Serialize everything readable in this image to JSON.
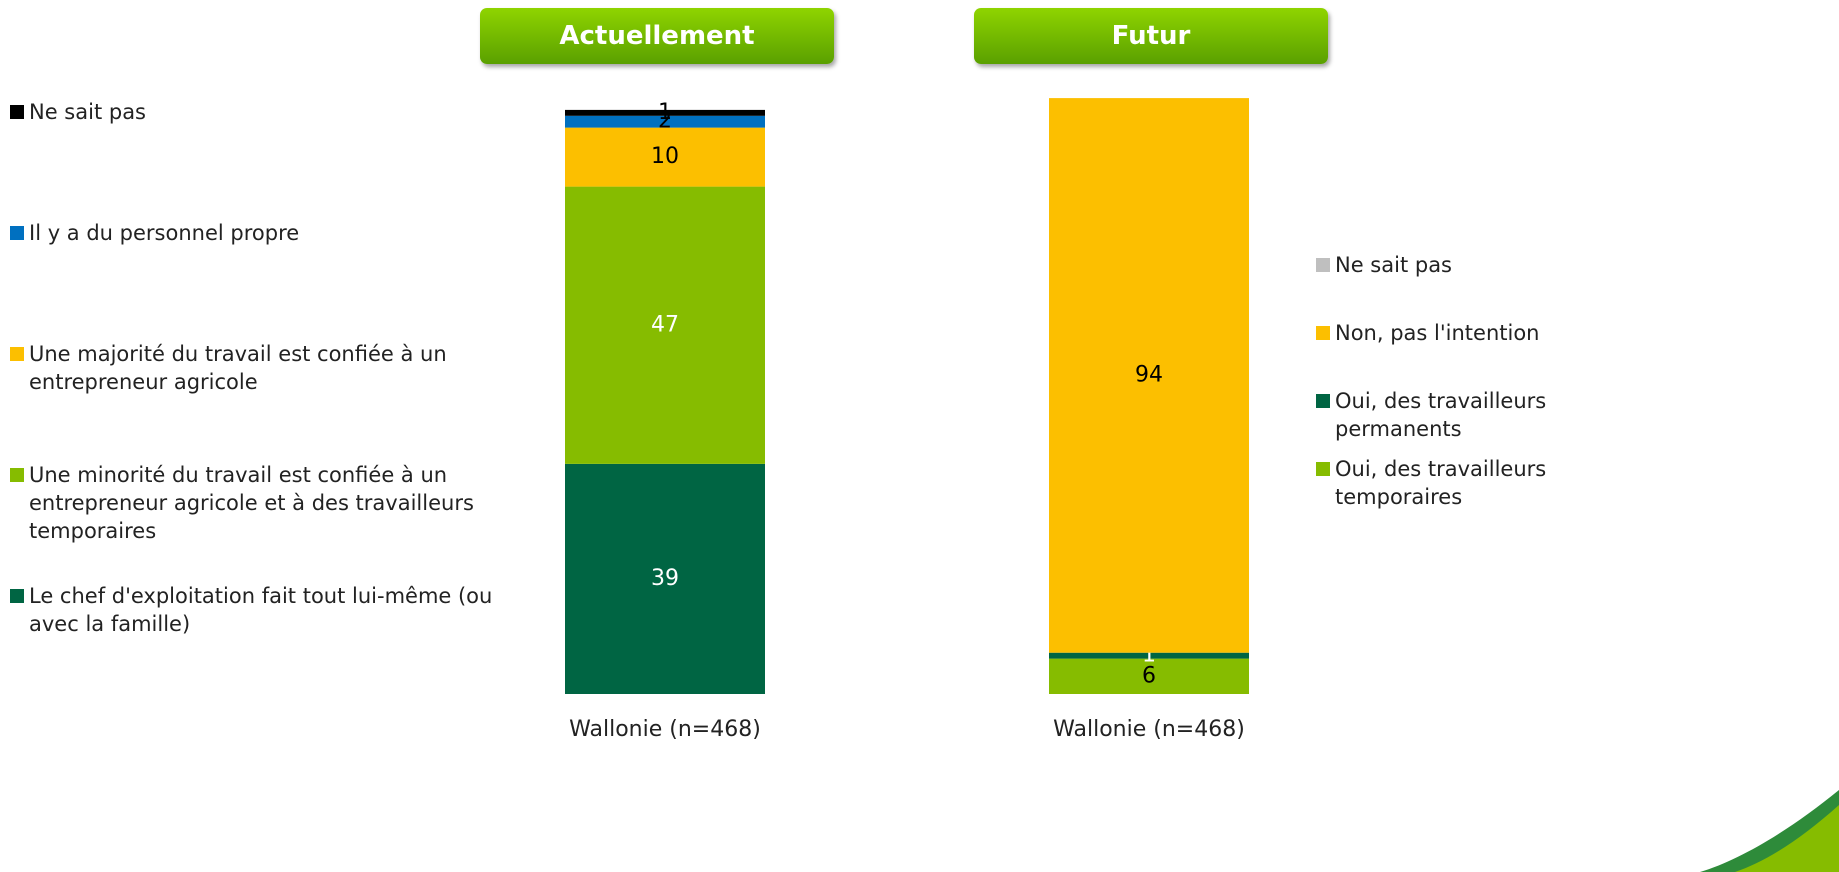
{
  "chart_data": [
    {
      "type": "stacked_bar",
      "title": "Actuellement",
      "categories": [
        "Wallonie (n=468)"
      ],
      "series": [
        {
          "name": "Le chef d'exploitation fait tout lui-même (ou avec la famille)",
          "color": "#006543",
          "label_color": "#ffffff",
          "values": [
            39
          ]
        },
        {
          "name": "Une minorité du travail est confiée à un entrepreneur agricole et à des travailleurs temporaires",
          "color": "#86bc00",
          "label_color": "#ffffff",
          "values": [
            47
          ]
        },
        {
          "name": "Une majorité du travail est confiée à un entrepreneur agricole",
          "color": "#fcbf00",
          "label_color": "#000000",
          "values": [
            10
          ]
        },
        {
          "name": "Il y a du personnel propre",
          "color": "#0070c0",
          "label_color": "#000000",
          "values": [
            2
          ]
        },
        {
          "name": "Ne sait pas",
          "color": "#000000",
          "label_color": "#000000",
          "values": [
            1
          ]
        }
      ]
    },
    {
      "type": "stacked_bar",
      "title": "Futur",
      "categories": [
        "Wallonie (n=468)"
      ],
      "series": [
        {
          "name": "Oui, des travailleurs temporaires",
          "color": "#86bc00",
          "label_color": "#000000",
          "values": [
            6
          ]
        },
        {
          "name": "Oui, des travailleurs permanents",
          "color": "#006543",
          "label_color": "#ffffff",
          "values": [
            1
          ]
        },
        {
          "name": "Non, pas l'intention",
          "color": "#fcbf00",
          "label_color": "#000000",
          "values": [
            94
          ]
        },
        {
          "name": "Ne sait pas",
          "color": "#bfbfbf",
          "label_color": "#000000",
          "values": [
            0
          ]
        }
      ]
    }
  ]
}
